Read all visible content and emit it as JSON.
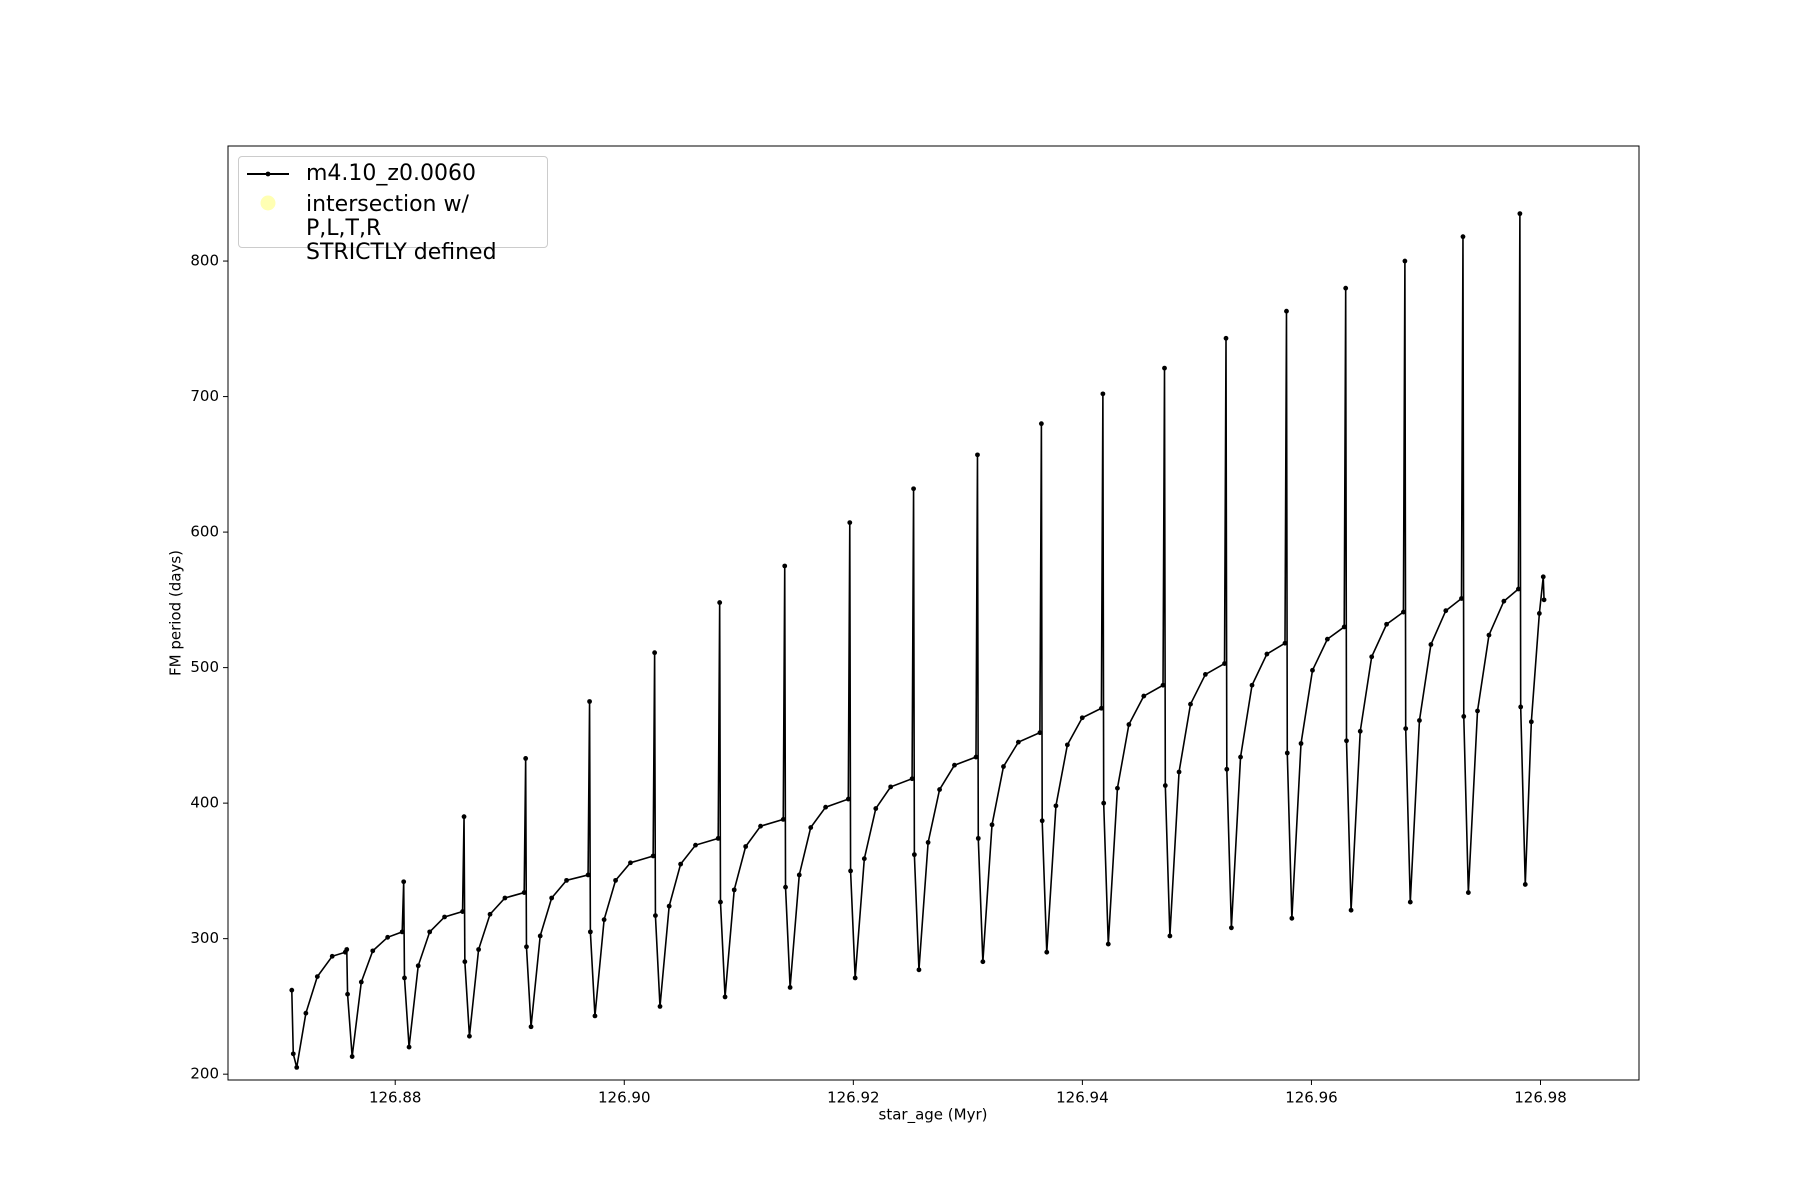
{
  "chart_data": {
    "type": "line",
    "xlabel": "star_age (Myr)",
    "ylabel": "FM period (days)",
    "xlim": [
      126.8654,
      126.9886
    ],
    "ylim": [
      195.7,
      884.9
    ],
    "xticks": [
      126.88,
      {
        "value": 126.9,
        "label": "126.90"
      },
      126.92,
      126.94,
      126.96,
      126.98
    ],
    "yticks": [
      200,
      300,
      400,
      500,
      600,
      700,
      800
    ],
    "legend": "upper left",
    "series": [
      {
        "name": "m4.10_z0.0060",
        "color": "#000000",
        "marker": "dot",
        "x": [
          126.87097,
          126.8711,
          126.8714,
          126.8722,
          126.8732,
          126.8745,
          126.87564,
          126.87577,
          126.87584,
          126.87624,
          126.87704,
          126.87804,
          126.87934,
          126.88061,
          126.88074,
          126.88081,
          126.88121,
          126.88201,
          126.88301,
          126.88431,
          126.88588,
          126.88601,
          126.88608,
          126.88648,
          126.88728,
          126.88828,
          126.88958,
          126.89126,
          126.89139,
          126.89146,
          126.89186,
          126.89266,
          126.89366,
          126.89496,
          126.89684,
          126.89697,
          126.89704,
          126.89744,
          126.89824,
          126.89924,
          126.90054,
          126.90252,
          126.90265,
          126.90272,
          126.90312,
          126.90392,
          126.90492,
          126.90622,
          126.9082,
          126.90833,
          126.9084,
          126.9088,
          126.9096,
          126.9106,
          126.9119,
          126.91388,
          126.91401,
          126.91408,
          126.91448,
          126.91528,
          126.91628,
          126.91758,
          126.91956,
          126.91969,
          126.91976,
          126.92016,
          126.92096,
          126.92196,
          126.92326,
          126.92513,
          126.92526,
          126.92533,
          126.92573,
          126.92653,
          126.92753,
          126.92883,
          126.93071,
          126.93084,
          126.93091,
          126.93131,
          126.93211,
          126.93311,
          126.93441,
          126.93629,
          126.93642,
          126.93649,
          126.93689,
          126.93769,
          126.93869,
          126.93999,
          126.94166,
          126.94179,
          126.94186,
          126.94226,
          126.94306,
          126.94406,
          126.94536,
          126.94704,
          126.94717,
          126.94724,
          126.94764,
          126.94844,
          126.94944,
          126.95074,
          126.95241,
          126.95254,
          126.95261,
          126.95301,
          126.95381,
          126.95481,
          126.95611,
          126.95769,
          126.95782,
          126.95789,
          126.95829,
          126.95909,
          126.96009,
          126.96139,
          126.96286,
          126.96299,
          126.96306,
          126.96346,
          126.96426,
          126.96526,
          126.96656,
          126.96803,
          126.96816,
          126.96823,
          126.96863,
          126.96943,
          126.97043,
          126.97173,
          126.9731,
          126.97323,
          126.9733,
          126.9737,
          126.9745,
          126.9755,
          126.9768,
          126.97807,
          126.9782,
          126.97827,
          126.97867,
          126.9792,
          126.9799,
          126.98024,
          126.98031
        ],
        "y": [
          262,
          215,
          205,
          245,
          272,
          287,
          290,
          292,
          259,
          213,
          268,
          291,
          301,
          305,
          342,
          271,
          220,
          280,
          305,
          316,
          320,
          390,
          283,
          228,
          292,
          318,
          330,
          334,
          433,
          294,
          235,
          302,
          330,
          343,
          347,
          475,
          305,
          243,
          314,
          343,
          356,
          361,
          511,
          317,
          250,
          324,
          355,
          369,
          374,
          548,
          327,
          257,
          336,
          368,
          383,
          388,
          575,
          338,
          264,
          347,
          382,
          397,
          403,
          607,
          350,
          271,
          359,
          396,
          412,
          418,
          632,
          362,
          277,
          371,
          410,
          428,
          434,
          657,
          374,
          283,
          384,
          427,
          445,
          452,
          680,
          387,
          290,
          398,
          443,
          463,
          470,
          702,
          400,
          296,
          411,
          458,
          479,
          487,
          721,
          413,
          302,
          423,
          473,
          495,
          503,
          743,
          425,
          308,
          434,
          487,
          510,
          518,
          763,
          437,
          315,
          444,
          498,
          521,
          530,
          780,
          446,
          321,
          453,
          508,
          532,
          541,
          800,
          455,
          327,
          461,
          517,
          542,
          551,
          818,
          464,
          334,
          468,
          524,
          549,
          558,
          835,
          471,
          340,
          460,
          540,
          567,
          550
        ]
      },
      {
        "name": "intersection w/ P,L,T,R\nSTRICTLY defined",
        "color": "#ffffb3",
        "type": "scatter",
        "x": [],
        "y": []
      }
    ]
  }
}
